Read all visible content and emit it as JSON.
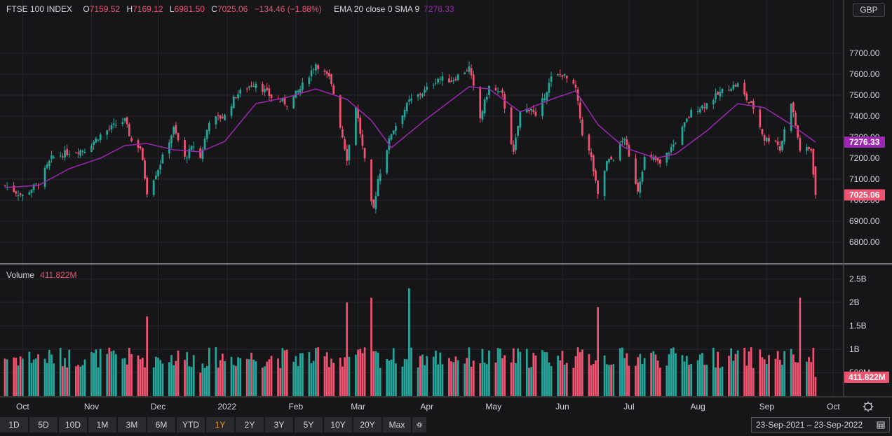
{
  "legend": {
    "symbol": "FTSE 100 INDEX",
    "o_label": "O",
    "o": "7159.52",
    "h_label": "H",
    "h": "7169.12",
    "l_label": "L",
    "l": "6981.50",
    "c_label": "C",
    "c": "7025.06",
    "change": "−134.46 (−1.88%)",
    "ema_label": "EMA 20 close 0 SMA 9",
    "ema_value": "7276.33"
  },
  "currency": "GBP",
  "volume_legend": {
    "label": "Volume",
    "value": "411.822M"
  },
  "range_buttons": [
    "1D",
    "5D",
    "10D",
    "1M",
    "3M",
    "6M",
    "YTD",
    "1Y",
    "2Y",
    "3Y",
    "5Y",
    "10Y",
    "20Y",
    "Max"
  ],
  "active_range": "1Y",
  "date_range": {
    "from": "23-Sep-2021",
    "sep": "–",
    "to": "23-Sep-2022"
  },
  "colors": {
    "up": "#26a69a",
    "down": "#ef5370",
    "ema": "#9c27b0",
    "background": "#161619"
  },
  "chart_data": {
    "type": "candlestick",
    "price_axis": {
      "ticks": [
        6800,
        6900,
        7000,
        7100,
        7200,
        7300,
        7400,
        7500,
        7600,
        7700
      ],
      "tick_labels": [
        "6800.00",
        "6900.00",
        "7000.00",
        "7100.00",
        "7200.00",
        "7300.00",
        "7400.00",
        "7500.00",
        "7600.00",
        "7700.00"
      ],
      "range": [
        6700,
        7860
      ]
    },
    "volume_axis": {
      "ticks": [
        0.5,
        1,
        1.5,
        2,
        2.5
      ],
      "tick_labels": [
        "500M",
        "1B",
        "1.5B",
        "2B",
        "2.5B"
      ],
      "range": [
        0,
        2.6
      ],
      "unit": "B"
    },
    "x_axis": {
      "labels": [
        "Oct",
        "Nov",
        "Dec",
        "2022",
        "Feb",
        "Mar",
        "Apr",
        "May",
        "Jun",
        "Jul",
        "Aug",
        "Sep",
        "Oct"
      ]
    },
    "grid": true,
    "price_keypoints": [
      [
        "2021-09-23",
        7070
      ],
      [
        "2021-10-01",
        7020
      ],
      [
        "2021-10-08",
        7080
      ],
      [
        "2021-10-14",
        7200
      ],
      [
        "2021-10-22",
        7230
      ],
      [
        "2021-10-29",
        7240
      ],
      [
        "2021-11-05",
        7310
      ],
      [
        "2021-11-12",
        7360
      ],
      [
        "2021-11-16",
        7380
      ],
      [
        "2021-11-19",
        7280
      ],
      [
        "2021-11-23",
        7250
      ],
      [
        "2021-11-26",
        7040
      ],
      [
        "2021-12-01",
        7150
      ],
      [
        "2021-12-08",
        7340
      ],
      [
        "2021-12-13",
        7200
      ],
      [
        "2021-12-17",
        7260
      ],
      [
        "2021-12-20",
        7200
      ],
      [
        "2021-12-24",
        7380
      ],
      [
        "2021-12-31",
        7400
      ],
      [
        "2022-01-05",
        7500
      ],
      [
        "2022-01-12",
        7550
      ],
      [
        "2022-01-14",
        7560
      ],
      [
        "2022-01-21",
        7490
      ],
      [
        "2022-01-28",
        7460
      ],
      [
        "2022-02-03",
        7530
      ],
      [
        "2022-02-10",
        7650
      ],
      [
        "2022-02-16",
        7580
      ],
      [
        "2022-02-18",
        7510
      ],
      [
        "2022-02-24",
        7200
      ],
      [
        "2022-02-28",
        7450
      ],
      [
        "2022-03-02",
        7320
      ],
      [
        "2022-03-07",
        6980
      ],
      [
        "2022-03-08",
        6960
      ],
      [
        "2022-03-10",
        7100
      ],
      [
        "2022-03-16",
        7320
      ],
      [
        "2022-03-24",
        7470
      ],
      [
        "2022-03-31",
        7520
      ],
      [
        "2022-04-06",
        7580
      ],
      [
        "2022-04-12",
        7570
      ],
      [
        "2022-04-20",
        7630
      ],
      [
        "2022-04-25",
        7390
      ],
      [
        "2022-04-29",
        7540
      ],
      [
        "2022-05-05",
        7500
      ],
      [
        "2022-05-10",
        7220
      ],
      [
        "2022-05-13",
        7420
      ],
      [
        "2022-05-18",
        7440
      ],
      [
        "2022-05-20",
        7390
      ],
      [
        "2022-05-27",
        7580
      ],
      [
        "2022-06-01",
        7600
      ],
      [
        "2022-06-07",
        7530
      ],
      [
        "2022-06-10",
        7320
      ],
      [
        "2022-06-14",
        7200
      ],
      [
        "2022-06-17",
        7020
      ],
      [
        "2022-06-21",
        7180
      ],
      [
        "2022-06-24",
        7200
      ],
      [
        "2022-06-29",
        7300
      ],
      [
        "2022-07-01",
        7200
      ],
      [
        "2022-07-05",
        7050
      ],
      [
        "2022-07-08",
        7200
      ],
      [
        "2022-07-13",
        7190
      ],
      [
        "2022-07-15",
        7170
      ],
      [
        "2022-07-22",
        7280
      ],
      [
        "2022-07-29",
        7420
      ],
      [
        "2022-08-05",
        7460
      ],
      [
        "2022-08-12",
        7520
      ],
      [
        "2022-08-16",
        7540
      ],
      [
        "2022-08-19",
        7550
      ],
      [
        "2022-08-23",
        7480
      ],
      [
        "2022-08-26",
        7440
      ],
      [
        "2022-08-31",
        7290
      ],
      [
        "2022-09-05",
        7290
      ],
      [
        "2022-09-07",
        7240
      ],
      [
        "2022-09-12",
        7470
      ],
      [
        "2022-09-16",
        7240
      ],
      [
        "2022-09-21",
        7240
      ],
      [
        "2022-09-23",
        7025
      ]
    ],
    "ema_keypoints": [
      [
        "2021-09-23",
        7060
      ],
      [
        "2021-10-08",
        7070
      ],
      [
        "2021-10-22",
        7150
      ],
      [
        "2021-11-05",
        7200
      ],
      [
        "2021-11-16",
        7260
      ],
      [
        "2021-11-26",
        7270
      ],
      [
        "2021-12-08",
        7240
      ],
      [
        "2021-12-20",
        7230
      ],
      [
        "2021-12-31",
        7280
      ],
      [
        "2022-01-14",
        7460
      ],
      [
        "2022-01-28",
        7490
      ],
      [
        "2022-02-10",
        7530
      ],
      [
        "2022-02-24",
        7480
      ],
      [
        "2022-03-07",
        7380
      ],
      [
        "2022-03-16",
        7250
      ],
      [
        "2022-03-31",
        7380
      ],
      [
        "2022-04-20",
        7540
      ],
      [
        "2022-04-29",
        7530
      ],
      [
        "2022-05-13",
        7420
      ],
      [
        "2022-05-27",
        7480
      ],
      [
        "2022-06-07",
        7520
      ],
      [
        "2022-06-17",
        7360
      ],
      [
        "2022-06-29",
        7250
      ],
      [
        "2022-07-13",
        7200
      ],
      [
        "2022-07-22",
        7220
      ],
      [
        "2022-08-05",
        7330
      ],
      [
        "2022-08-19",
        7460
      ],
      [
        "2022-08-31",
        7440
      ],
      [
        "2022-09-12",
        7360
      ],
      [
        "2022-09-23",
        7276
      ]
    ],
    "last_price": 7025.06,
    "last_ema": 7276.33,
    "last_volume_label": "411.822M",
    "last_volume": 0.41,
    "volume_keypoints": [
      [
        "2021-09-23",
        0.8
      ],
      [
        "2021-11-26",
        1.7
      ],
      [
        "2021-12-20",
        0.5
      ],
      [
        "2022-02-24",
        2.0
      ],
      [
        "2022-03-07",
        2.1
      ],
      [
        "2022-03-24",
        2.3
      ],
      [
        "2022-06-17",
        1.9
      ],
      [
        "2022-09-16",
        2.1
      ],
      [
        "2022-09-23",
        0.41
      ]
    ]
  }
}
